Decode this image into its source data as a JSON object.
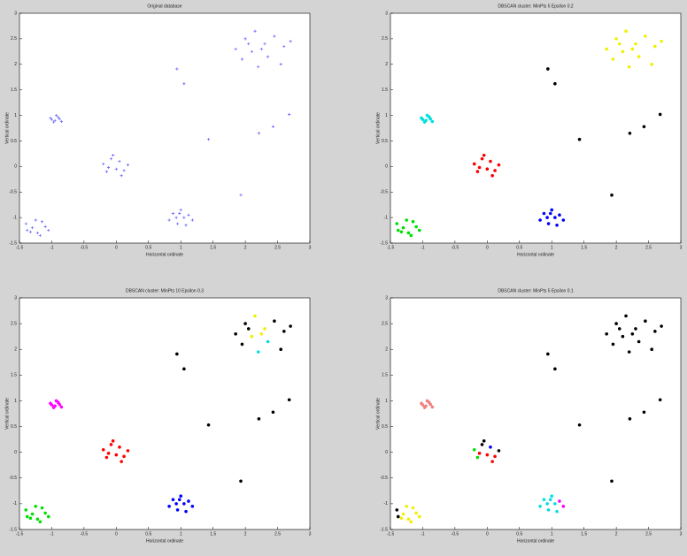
{
  "chart_data": [
    {
      "type": "scatter",
      "title": "Original database",
      "xlabel": "Horizontal ordinate",
      "ylabel": "Vertical ordinate",
      "xlim": [
        -1.5,
        3
      ],
      "ylim": [
        -1.5,
        3
      ],
      "xticks": [
        -1.5,
        -1,
        -0.5,
        0,
        0.5,
        1,
        1.5,
        2,
        2.5,
        3
      ],
      "yticks": [
        -1.5,
        -1,
        -0.5,
        0,
        0.5,
        1,
        1.5,
        2,
        2.5,
        3
      ],
      "marker": "plus",
      "series": [
        {
          "color": "#5b5bff",
          "x": [
            -1.4,
            -1.33,
            -1.25,
            -1.18,
            -1.1,
            -1.05,
            -1.3,
            -1.22,
            -1.15,
            -1.38,
            -1.02,
            -0.97,
            -0.93,
            -0.88,
            -0.95,
            -0.85,
            -1.0,
            -0.9,
            -0.2,
            -0.15,
            -0.08,
            0.0,
            0.05,
            0.12,
            0.18,
            -0.05,
            0.08,
            -0.12,
            0.82,
            0.88,
            0.95,
            1.0,
            1.05,
            1.12,
            1.18,
            0.93,
            1.08,
            0.98,
            1.85,
            1.95,
            2.0,
            2.1,
            2.15,
            2.2,
            2.3,
            2.35,
            2.45,
            2.55,
            2.6,
            2.7,
            2.25,
            2.05,
            0.94,
            1.05,
            1.43,
            1.93,
            2.21,
            2.43,
            2.68
          ],
          "values": [
            -1.12,
            -1.28,
            -1.05,
            -1.35,
            -1.18,
            -1.25,
            -1.2,
            -1.3,
            -1.08,
            -1.25,
            0.95,
            0.87,
            1.0,
            0.93,
            0.9,
            0.88,
            0.92,
            0.97,
            0.05,
            -0.1,
            0.15,
            -0.05,
            0.1,
            -0.08,
            0.03,
            0.22,
            -0.18,
            -0.02,
            -1.05,
            -0.92,
            -1.12,
            -0.85,
            -1.0,
            -0.95,
            -1.05,
            -1.0,
            -1.15,
            -0.92,
            2.3,
            2.1,
            2.5,
            2.25,
            2.65,
            1.95,
            2.4,
            2.15,
            2.55,
            2.0,
            2.35,
            2.45,
            2.3,
            2.4,
            1.91,
            1.62,
            0.53,
            -0.56,
            0.65,
            0.78,
            1.02
          ]
        }
      ]
    },
    {
      "type": "scatter",
      "title": "DBSCAN cluster: MinPts 5 Epsilon 0.2",
      "xlabel": "Horizontal ordinate",
      "ylabel": "Vertical ordinate",
      "xlim": [
        -1.5,
        3
      ],
      "ylim": [
        -1.5,
        3
      ],
      "xticks": [
        -1.5,
        -1,
        -0.5,
        0,
        0.5,
        1,
        1.5,
        2,
        2.5,
        3
      ],
      "yticks": [
        -1.5,
        -1,
        -0.5,
        0,
        0.5,
        1,
        1.5,
        2,
        2.5,
        3
      ],
      "marker": "dot",
      "series": [
        {
          "color": "#00e000",
          "x": [
            -1.4,
            -1.33,
            -1.25,
            -1.18,
            -1.1,
            -1.05,
            -1.3,
            -1.22,
            -1.15,
            -1.38
          ],
          "values": [
            -1.12,
            -1.28,
            -1.05,
            -1.35,
            -1.18,
            -1.25,
            -1.2,
            -1.3,
            -1.08,
            -1.25
          ]
        },
        {
          "color": "#00e0e0",
          "x": [
            -1.02,
            -0.97,
            -0.93,
            -0.88,
            -0.95,
            -0.85,
            -1.0,
            -0.9
          ],
          "values": [
            0.95,
            0.87,
            1.0,
            0.93,
            0.9,
            0.88,
            0.92,
            0.97
          ]
        },
        {
          "color": "#ff0000",
          "x": [
            -0.2,
            -0.15,
            -0.08,
            0.0,
            0.05,
            0.12,
            0.18,
            -0.05,
            0.08,
            -0.12
          ],
          "values": [
            0.05,
            -0.1,
            0.15,
            -0.05,
            0.1,
            -0.08,
            0.03,
            0.22,
            -0.18,
            -0.02
          ]
        },
        {
          "color": "#0000ff",
          "x": [
            0.82,
            0.88,
            0.95,
            1.0,
            1.05,
            1.12,
            1.18,
            0.93,
            1.08,
            0.98
          ],
          "values": [
            -1.05,
            -0.92,
            -1.12,
            -0.85,
            -1.0,
            -0.95,
            -1.05,
            -1.0,
            -1.15,
            -0.92
          ]
        },
        {
          "color": "#f0f000",
          "x": [
            1.85,
            1.95,
            2.0,
            2.1,
            2.15,
            2.2,
            2.3,
            2.35,
            2.45,
            2.55,
            2.6,
            2.7,
            2.25,
            2.05
          ],
          "values": [
            2.3,
            2.1,
            2.5,
            2.25,
            2.65,
            1.95,
            2.4,
            2.15,
            2.55,
            2.0,
            2.35,
            2.45,
            2.3,
            2.4
          ]
        },
        {
          "color": "#000000",
          "x": [
            0.94,
            1.05,
            1.43,
            1.93,
            2.21,
            2.43,
            2.68
          ],
          "values": [
            1.91,
            1.62,
            0.53,
            -0.56,
            0.65,
            0.78,
            1.02
          ]
        }
      ]
    },
    {
      "type": "scatter",
      "title": "DBSCAN cluster: MinPts 10 Epsilon 0.3",
      "xlabel": "Horizontal ordinate",
      "ylabel": "Vertical ordinate",
      "xlim": [
        -1.5,
        3
      ],
      "ylim": [
        -1.5,
        3
      ],
      "xticks": [
        -1.5,
        -1,
        -0.5,
        0,
        0.5,
        1,
        1.5,
        2,
        2.5,
        3
      ],
      "yticks": [
        -1.5,
        -1,
        -0.5,
        0,
        0.5,
        1,
        1.5,
        2,
        2.5,
        3
      ],
      "marker": "dot",
      "series": [
        {
          "color": "#00e000",
          "x": [
            -1.4,
            -1.33,
            -1.25,
            -1.18,
            -1.1,
            -1.05,
            -1.3,
            -1.22,
            -1.15,
            -1.38
          ],
          "values": [
            -1.12,
            -1.28,
            -1.05,
            -1.35,
            -1.18,
            -1.25,
            -1.2,
            -1.3,
            -1.08,
            -1.25
          ]
        },
        {
          "color": "#ff00ff",
          "x": [
            -1.02,
            -0.97,
            -0.93,
            -0.88,
            -0.95,
            -0.85,
            -1.0,
            -0.9
          ],
          "values": [
            0.95,
            0.87,
            1.0,
            0.93,
            0.9,
            0.88,
            0.92,
            0.97
          ]
        },
        {
          "color": "#ff0000",
          "x": [
            -0.2,
            -0.15,
            -0.08,
            0.0,
            0.05,
            0.12,
            0.18,
            -0.05,
            0.08,
            -0.12
          ],
          "values": [
            0.05,
            -0.1,
            0.15,
            -0.05,
            0.1,
            -0.08,
            0.03,
            0.22,
            -0.18,
            -0.02
          ]
        },
        {
          "color": "#0000ff",
          "x": [
            0.82,
            0.88,
            0.95,
            1.0,
            1.05,
            1.12,
            1.18,
            0.93,
            1.08,
            0.98
          ],
          "values": [
            -1.05,
            -0.92,
            -1.12,
            -0.85,
            -1.0,
            -0.95,
            -1.05,
            -1.0,
            -1.15,
            -0.92
          ]
        },
        {
          "color": "#f0f000",
          "x": [
            2.1,
            2.15,
            2.3,
            2.25
          ],
          "values": [
            2.25,
            2.65,
            2.4,
            2.3
          ]
        },
        {
          "color": "#00e0e0",
          "x": [
            2.2,
            2.35
          ],
          "values": [
            1.95,
            2.15
          ]
        },
        {
          "color": "#000000",
          "x": [
            1.85,
            1.95,
            2.0,
            2.45,
            2.55,
            2.6,
            2.7,
            2.05,
            0.94,
            1.05,
            1.43,
            1.93,
            2.21,
            2.43,
            2.68
          ],
          "values": [
            2.3,
            2.1,
            2.5,
            2.55,
            2.0,
            2.35,
            2.45,
            2.4,
            1.91,
            1.62,
            0.53,
            -0.56,
            0.65,
            0.78,
            1.02
          ]
        }
      ]
    },
    {
      "type": "scatter",
      "title": "DBSCAN cluster: MinPts 5 Epsilon 0.1",
      "xlabel": "Horizontal ordinate",
      "ylabel": "Vertical ordinate",
      "xlim": [
        -1.5,
        3
      ],
      "ylim": [
        -1.5,
        3
      ],
      "xticks": [
        -1.5,
        -1,
        -0.5,
        0,
        0.5,
        1,
        1.5,
        2,
        2.5,
        3
      ],
      "yticks": [
        -1.5,
        -1,
        -0.5,
        0,
        0.5,
        1,
        1.5,
        2,
        2.5,
        3
      ],
      "marker": "dot",
      "series": [
        {
          "color": "#f0f000",
          "x": [
            -1.33,
            -1.25,
            -1.18,
            -1.1,
            -1.05,
            -1.3,
            -1.22,
            -1.15
          ],
          "values": [
            -1.28,
            -1.05,
            -1.35,
            -1.18,
            -1.25,
            -1.2,
            -1.3,
            -1.08
          ]
        },
        {
          "color": "#f08080",
          "x": [
            -1.02,
            -0.97,
            -0.93,
            -0.88,
            -0.95,
            -0.85,
            -1.0,
            -0.9
          ],
          "values": [
            0.95,
            0.87,
            1.0,
            0.93,
            0.9,
            0.88,
            0.92,
            0.97
          ]
        },
        {
          "color": "#00e000",
          "x": [
            -0.2,
            -0.15
          ],
          "values": [
            0.05,
            -0.1
          ]
        },
        {
          "color": "#0000ff",
          "x": [
            0.05
          ],
          "values": [
            0.1
          ]
        },
        {
          "color": "#ff0000",
          "x": [
            0.0,
            0.12,
            0.08,
            -0.12
          ],
          "values": [
            -0.05,
            -0.08,
            -0.18,
            -0.02
          ]
        },
        {
          "color": "#00e0e0",
          "x": [
            0.82,
            0.88,
            0.95,
            1.0,
            1.05,
            0.93,
            1.08,
            0.98
          ],
          "values": [
            -1.05,
            -0.92,
            -1.12,
            -0.85,
            -1.0,
            -1.0,
            -1.15,
            -0.92
          ]
        },
        {
          "color": "#ff00ff",
          "x": [
            1.12,
            1.18
          ],
          "values": [
            -0.95,
            -1.05
          ]
        },
        {
          "color": "#000000",
          "x": [
            -1.4,
            -1.38,
            -0.08,
            -0.05,
            0.18,
            1.85,
            1.95,
            2.0,
            2.1,
            2.15,
            2.2,
            2.3,
            2.35,
            2.45,
            2.55,
            2.6,
            2.7,
            2.25,
            2.05,
            0.94,
            1.05,
            1.43,
            1.93,
            2.21,
            2.43,
            2.68
          ],
          "values": [
            -1.12,
            -1.25,
            0.15,
            0.22,
            0.03,
            2.3,
            2.1,
            2.5,
            2.25,
            2.65,
            1.95,
            2.4,
            2.15,
            2.55,
            2.0,
            2.35,
            2.45,
            2.3,
            2.4,
            1.91,
            1.62,
            0.53,
            -0.56,
            0.65,
            0.78,
            1.02
          ]
        }
      ]
    }
  ]
}
